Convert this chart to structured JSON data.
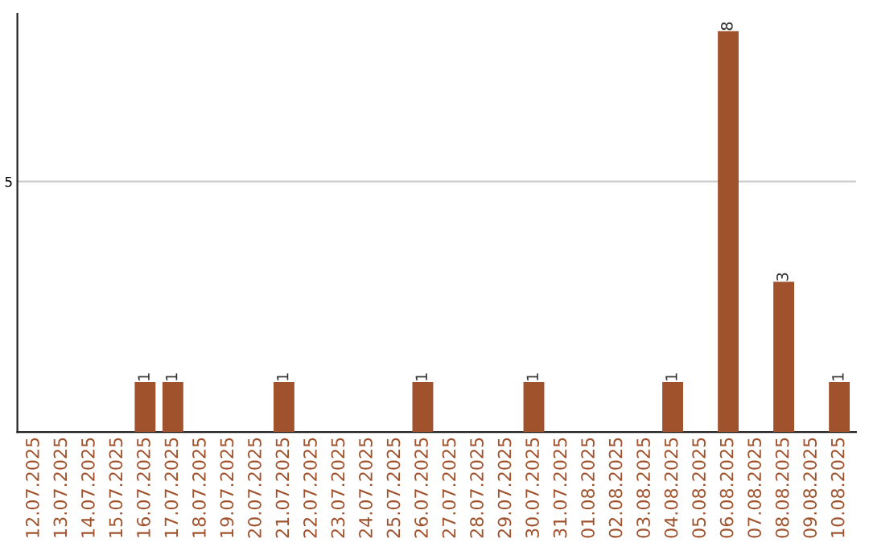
{
  "chart_data": {
    "type": "bar",
    "categories": [
      "12.07.2025",
      "13.07.2025",
      "14.07.2025",
      "15.07.2025",
      "16.07.2025",
      "17.07.2025",
      "18.07.2025",
      "19.07.2025",
      "20.07.2025",
      "21.07.2025",
      "22.07.2025",
      "23.07.2025",
      "24.07.2025",
      "25.07.2025",
      "26.07.2025",
      "27.07.2025",
      "28.07.2025",
      "29.07.2025",
      "30.07.2025",
      "31.07.2025",
      "01.08.2025",
      "02.08.2025",
      "03.08.2025",
      "04.08.2025",
      "05.08.2025",
      "06.08.2025",
      "07.08.2025",
      "08.08.2025",
      "09.08.2025",
      "10.08.2025"
    ],
    "values": [
      0,
      0,
      0,
      0,
      1,
      1,
      0,
      0,
      0,
      1,
      0,
      0,
      0,
      0,
      1,
      0,
      0,
      0,
      1,
      0,
      0,
      0,
      0,
      1,
      0,
      8,
      0,
      3,
      0,
      1
    ],
    "value_labels": [
      null,
      null,
      null,
      null,
      "1",
      "1",
      null,
      null,
      null,
      "1",
      null,
      null,
      null,
      null,
      "1",
      null,
      null,
      null,
      "1",
      null,
      null,
      null,
      null,
      "1",
      null,
      "8",
      null,
      "3",
      null,
      "1"
    ],
    "color": "#a0522d",
    "ylim": [
      0,
      8.35
    ],
    "yticks": [
      5
    ],
    "grid": "y"
  }
}
